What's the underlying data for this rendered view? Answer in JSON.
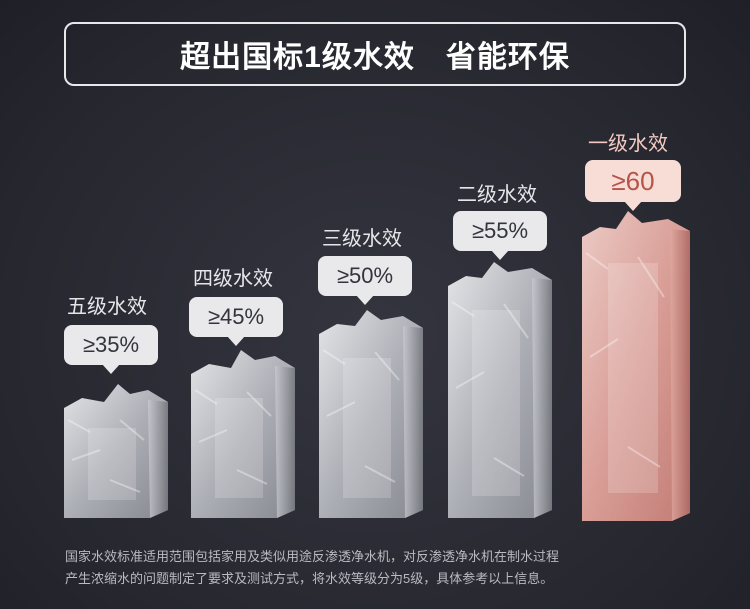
{
  "header": {
    "title": "超出国标1级水效　省能环保"
  },
  "levels": [
    {
      "label": "五级水效",
      "value": "≥35%"
    },
    {
      "label": "四级水效",
      "value": "≥45%"
    },
    {
      "label": "三级水效",
      "value": "≥50%"
    },
    {
      "label": "二级水效",
      "value": "≥55%"
    },
    {
      "label": "一级水效",
      "value": "≥60"
    }
  ],
  "footnote": {
    "line1": "国家水效标准适用范围包括家用及类似用途反渗透净水机，对反渗透净水机在制水过程",
    "line2": "产生浓缩水的问题制定了要求及测试方式，将水效等级分为5级，具体参考以上信息。"
  },
  "colors": {
    "background": "#2a2b36",
    "ice": "#d8d9dd",
    "highlight_ice": "#e9b3ac",
    "highlight_text": "#b55449"
  }
}
